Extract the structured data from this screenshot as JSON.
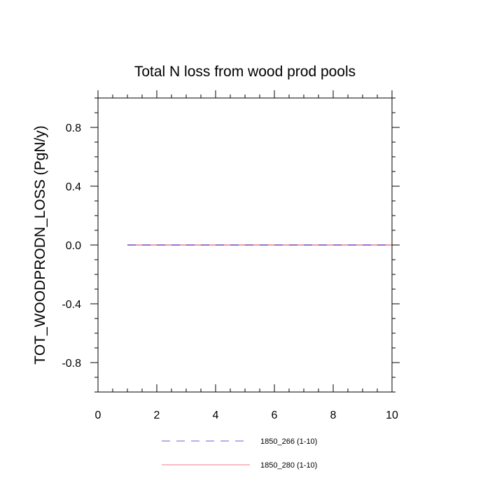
{
  "chart_data": {
    "type": "line",
    "title": "Total N loss from wood prod pools",
    "xlabel": "",
    "ylabel": "TOT_WOODPRODN_LOSS  (PgN/y)",
    "xlim": [
      0,
      10
    ],
    "ylim": [
      -1,
      1
    ],
    "x_ticks": [
      0,
      2,
      4,
      6,
      8,
      10
    ],
    "x_tick_labels": [
      "0",
      "2",
      "4",
      "6",
      "8",
      "10"
    ],
    "y_ticks": [
      -0.8,
      -0.4,
      0.0,
      0.4,
      0.8
    ],
    "y_tick_labels": [
      "-0.8",
      "-0.4",
      "0.0",
      "0.4",
      "0.8"
    ],
    "grid": false,
    "legend_position": "bottom",
    "series": [
      {
        "name": "1850_266 (1-10)",
        "color": "#6b5fd6",
        "style": "dashed",
        "x": [
          1,
          2,
          3,
          4,
          5,
          6,
          7,
          8,
          9,
          10
        ],
        "y": [
          0,
          0,
          0,
          0,
          0,
          0,
          0,
          0,
          0,
          0
        ]
      },
      {
        "name": "1850_280 (1-10)",
        "color": "#f07a86",
        "style": "solid",
        "x": [
          1,
          2,
          3,
          4,
          5,
          6,
          7,
          8,
          9,
          10
        ],
        "y": [
          0,
          0,
          0,
          0,
          0,
          0,
          0,
          0,
          0,
          0
        ]
      }
    ]
  }
}
